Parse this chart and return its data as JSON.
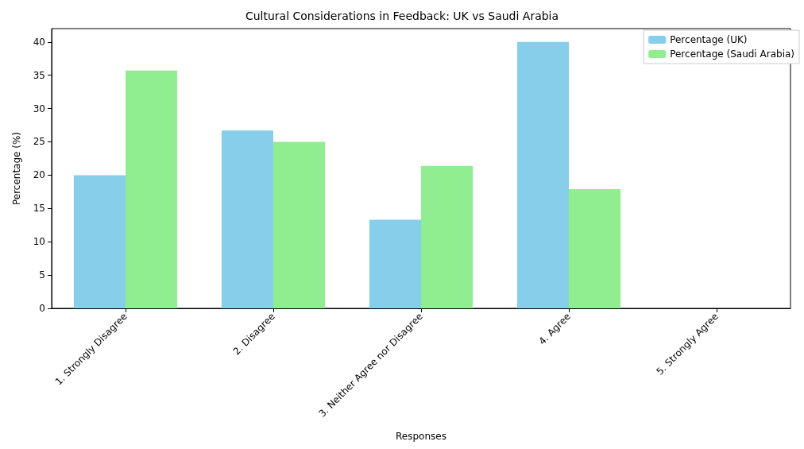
{
  "chart_data": {
    "type": "bar",
    "title": "Cultural Considerations in Feedback: UK vs Saudi Arabia",
    "xlabel": "Responses",
    "ylabel": "Percentage (%)",
    "categories": [
      "1. Strongly Disagree",
      "2. Disagree",
      "3. Neither Agree nor Disagree",
      "4. Agree",
      "5. Strongly Agree"
    ],
    "series": [
      {
        "name": "Percentage (UK)",
        "color": "#87ceeb",
        "values": [
          20,
          26.7,
          13.3,
          40,
          0
        ]
      },
      {
        "name": "Percentage (Saudi Arabia)",
        "color": "#90ee90",
        "values": [
          35.7,
          25,
          21.4,
          17.9,
          0
        ]
      }
    ],
    "ylim": [
      0,
      42
    ],
    "yticks": [
      0,
      5,
      10,
      15,
      20,
      25,
      30,
      35,
      40
    ],
    "grid": false,
    "legend": "top right"
  }
}
